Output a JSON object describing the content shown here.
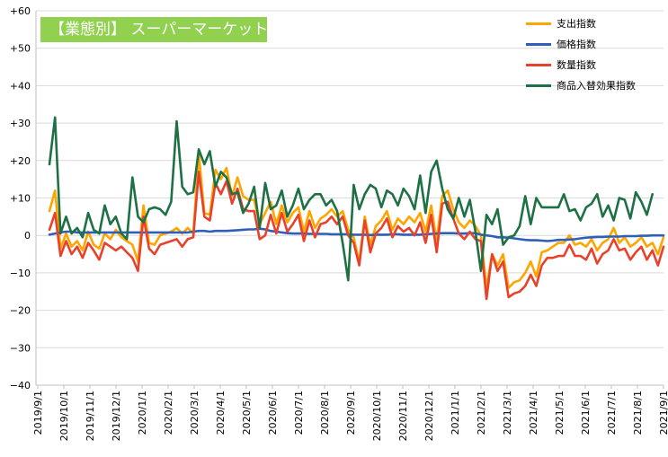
{
  "chart_data": {
    "type": "line",
    "title": "【業態別】 スーパーマーケット",
    "xlabel": "",
    "ylabel": "",
    "ylim": [
      -40,
      60
    ],
    "y_ticks": [
      60,
      50,
      40,
      30,
      20,
      10,
      0,
      -10,
      -20,
      -30,
      -40
    ],
    "y_tick_labels": [
      "+60",
      "+50",
      "+40",
      "+30",
      "+20",
      "+10",
      "0",
      "−10",
      "−20",
      "−30",
      "−40"
    ],
    "x_tick_labels": [
      "2019/9/1",
      "2019/10/1",
      "2019/11/1",
      "2019/12/1",
      "2020/1/1",
      "2020/2/1",
      "2020/3/1",
      "2020/4/1",
      "2020/5/1",
      "2020/6/1",
      "2020/7/1",
      "2020/8/1",
      "2020/9/1",
      "2020/10/1",
      "2020/11/1",
      "2020/12/1",
      "2021/1/1",
      "2021/2/1",
      "2021/3/1",
      "2021/4/1",
      "2021/5/1",
      "2021/6/1",
      "2021/7/1",
      "2021/8/1",
      "2021/9/1"
    ],
    "grid": "horizontal",
    "legend_position": "top-right",
    "series": [
      {
        "name": "支出指数",
        "color": "#ffa500",
        "values": [
          6.5,
          12,
          -3.5,
          0.5,
          -3,
          -1.5,
          -4,
          1,
          -2.5,
          -3.5,
          0.5,
          -1,
          1.5,
          -0.5,
          -1.5,
          -2.5,
          -7,
          8,
          -2,
          -2.5,
          0,
          0.5,
          1,
          2,
          0.5,
          2,
          0.5,
          22,
          6,
          5.5,
          17.5,
          15,
          18,
          10.5,
          15.5,
          10.5,
          9.5,
          9.5,
          3,
          6,
          9,
          3,
          8,
          3.5,
          6,
          7.5,
          1,
          6.5,
          2,
          4.5,
          5.5,
          7,
          5,
          6.5,
          1.5,
          -0.5,
          -7,
          5,
          -2.5,
          2.5,
          4,
          6.5,
          1.5,
          4.5,
          3,
          5,
          3.5,
          6,
          1,
          8,
          -1.5,
          10.5,
          12,
          7,
          3.5,
          2,
          4,
          2.5,
          0,
          -14,
          -5,
          -8,
          -5,
          -14,
          -12.5,
          -12,
          -10,
          -7,
          -11,
          -4.5,
          -4,
          -3,
          -2,
          -2,
          0,
          -2.5,
          -2,
          -3,
          -1,
          -4,
          -2,
          -1,
          2,
          -2,
          -0.5,
          -3,
          -2,
          -0.5,
          -3,
          -2,
          -5,
          -0.5
        ]
      },
      {
        "name": "価格指数",
        "color": "#2e5fb8",
        "values": [
          0.2,
          0.5,
          0.8,
          1,
          1,
          0.8,
          0.8,
          0.8,
          0.8,
          0.8,
          0.8,
          0.8,
          0.8,
          0.8,
          0.8,
          0.8,
          0.8,
          0.8,
          0.8,
          0.8,
          0.8,
          0.8,
          0.8,
          0.8,
          0.8,
          0.8,
          1,
          1.2,
          1.2,
          1,
          1.2,
          1.2,
          1.2,
          1.3,
          1.4,
          1.5,
          1.6,
          1.6,
          1.8,
          1.6,
          1.2,
          1,
          0.8,
          0.6,
          0.5,
          0.5,
          0.5,
          0.4,
          0.4,
          0.4,
          0.4,
          0.3,
          0.3,
          0.3,
          0.3,
          0.2,
          0.2,
          0.2,
          0.1,
          0.2,
          0.2,
          0.2,
          0.3,
          0.3,
          0.2,
          0.2,
          0.2,
          0.2,
          0.3,
          0.4,
          0.5,
          0.6,
          0.6,
          0.6,
          0.5,
          0.5,
          0.6,
          0.6,
          0.2,
          0,
          -0.2,
          -0.5,
          -0.5,
          -0.6,
          -0.8,
          -1,
          -1.2,
          -1.3,
          -1.3,
          -1.4,
          -1.5,
          -1.4,
          -1.2,
          -1.2,
          -1.1,
          -1,
          -0.8,
          -0.6,
          -0.5,
          -0.4,
          -0.4,
          -0.3,
          -0.3,
          -0.3,
          -0.2,
          -0.2,
          -0.2,
          -0.1,
          -0.1,
          0,
          0,
          0
        ]
      },
      {
        "name": "数量指数",
        "color": "#e8412c",
        "values": [
          1.5,
          6,
          -5.5,
          -1.5,
          -5,
          -3,
          -6,
          -2,
          -4,
          -6.5,
          -2,
          -3,
          -4,
          -3,
          -4.5,
          -6,
          -9.5,
          5,
          -3.5,
          -5,
          -2.5,
          -2,
          -1.5,
          -1,
          -3,
          -1,
          -0.5,
          17,
          5,
          4,
          14,
          11,
          14.5,
          8.5,
          12.5,
          7,
          6.5,
          6.5,
          -1,
          0,
          5.5,
          0.5,
          6,
          1,
          3,
          5.5,
          -1.5,
          4,
          -0.5,
          3,
          3.5,
          5,
          3,
          5,
          0,
          -2,
          -8,
          4,
          -4.5,
          0.5,
          2,
          4.5,
          -0.5,
          2.5,
          1,
          2,
          0,
          3.5,
          -2,
          5.5,
          -4.5,
          8.5,
          9,
          4.5,
          0.5,
          -1,
          1,
          -1,
          -1.5,
          -17,
          -5,
          -9.5,
          -7,
          -16.5,
          -15.5,
          -15,
          -13.5,
          -10.5,
          -13.5,
          -8,
          -6,
          -6,
          -5.5,
          -5.5,
          -2.5,
          -5.5,
          -5.5,
          -6.5,
          -3.5,
          -7.5,
          -5,
          -4,
          -1,
          -4,
          -3.5,
          -6.5,
          -4.5,
          -3,
          -6.5,
          -4,
          -8,
          -3
        ]
      },
      {
        "name": "商品入替効果指数",
        "color": "#1e7045",
        "values": [
          19,
          31.5,
          0.5,
          5,
          0.5,
          2,
          -0.5,
          6,
          1.5,
          0.5,
          8,
          3,
          5,
          0.5,
          -1,
          15.5,
          5,
          3.5,
          7,
          7.5,
          7,
          5.5,
          9,
          30.5,
          13,
          11,
          11.5,
          23,
          19,
          22.5,
          13,
          17,
          15.5,
          11,
          11.5,
          6,
          8.5,
          13,
          2,
          14,
          7,
          8,
          12,
          5,
          8,
          12.5,
          7,
          9.5,
          11,
          11,
          8,
          9.5,
          6.5,
          -2,
          -12,
          13.5,
          7,
          11,
          13.5,
          12.5,
          7.5,
          12,
          11,
          8,
          12.5,
          10.5,
          7,
          16,
          6,
          17,
          20,
          12.5,
          7,
          4.5,
          10,
          5,
          9.5,
          1,
          -9.5,
          5.5,
          3,
          7,
          -2.5,
          -0.5,
          0,
          2.5,
          10.5,
          3,
          10,
          7.5,
          7.5,
          7.5,
          7.5,
          11,
          6.5,
          7,
          4,
          7.5,
          8.5,
          11,
          5,
          8,
          4,
          10,
          9.5,
          4.5,
          11.5,
          9,
          5.5,
          11
        ]
      }
    ]
  }
}
